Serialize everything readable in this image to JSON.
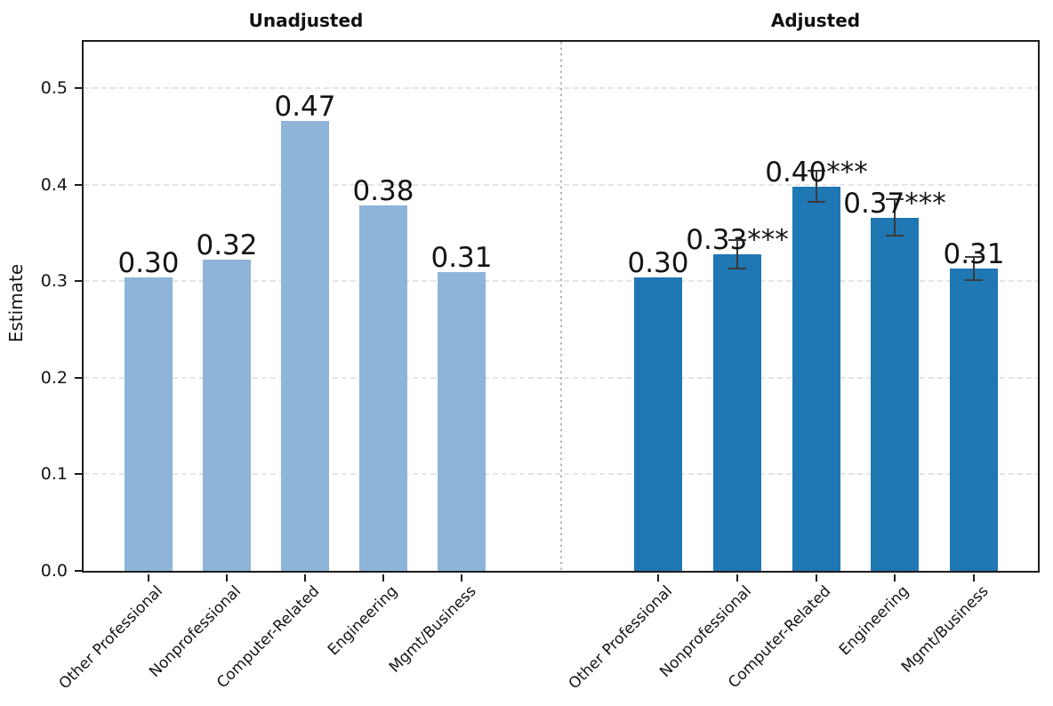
{
  "figure": {
    "ylabel": "Estimate",
    "panel_titles": {
      "left": "Unadjusted",
      "right": "Adjusted"
    }
  },
  "chart_data": {
    "type": "bar",
    "title_left": "Unadjusted",
    "title_right": "Adjusted",
    "ylabel": "Estimate",
    "xlabel": "",
    "ylim": [
      0,
      0.55
    ],
    "ytick_labels": [
      "0.0",
      "0.1",
      "0.2",
      "0.3",
      "0.4",
      "0.5"
    ],
    "ytick_values": [
      0,
      0.1,
      0.2,
      0.3,
      0.4,
      0.5
    ],
    "grid": "horizontal-dashed",
    "panel_divider": "vertical-dotted-center",
    "legend": "none",
    "categories": [
      "Other Professional",
      "Nonprofessional",
      "Computer-Related",
      "Engineering",
      "Mgmt/Business"
    ],
    "series": [
      {
        "name": "Unadjusted",
        "color": "#8eb4da",
        "values": [
          0.304,
          0.322,
          0.466,
          0.378,
          0.309
        ],
        "value_labels": [
          "0.30",
          "0.32",
          "0.47",
          "0.38",
          "0.31"
        ],
        "errors": [
          null,
          null,
          null,
          null,
          null
        ]
      },
      {
        "name": "Adjusted",
        "color": "#1f77b4",
        "values": [
          0.304,
          0.328,
          0.398,
          0.366,
          0.313
        ],
        "value_labels": [
          "0.30",
          "0.33***",
          "0.40***",
          "0.37***",
          "0.31"
        ],
        "errors": [
          null,
          0.015,
          0.016,
          0.019,
          0.012
        ]
      }
    ],
    "colors": {
      "bar_unadjusted": "#8eb4da",
      "bar_adjusted": "#1f77b4",
      "error_bar": "#3a3a3a",
      "spine": "#1c1c1c",
      "grid": "#e4e4e4",
      "divider": "#b5b5b5",
      "text": "#141414"
    }
  }
}
